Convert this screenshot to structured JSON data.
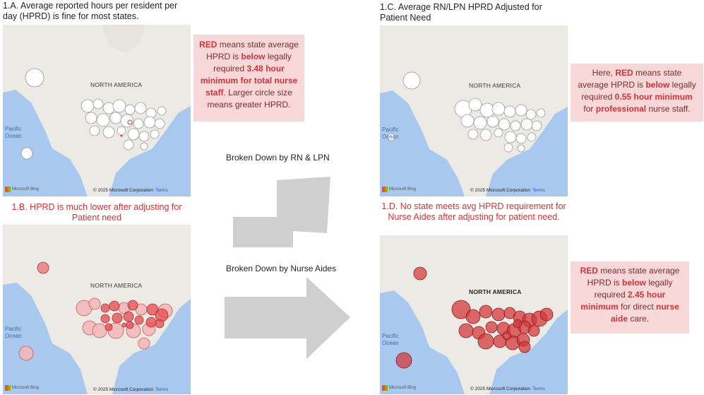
{
  "panels": {
    "a": {
      "title": "1.A. Average reported hours per resident per day (HPRD) is fine for most states.",
      "map_label": "NORTH AMERICA",
      "ocean_label_1": "Pacific",
      "ocean_label_2": "Ocean",
      "bing": "Microsoft Bing",
      "copyright": "© 2025 Microsoft Corporation",
      "terms": "Terms",
      "note": {
        "p1": "RED",
        "p2": " means state average HPRD is ",
        "p3": "below",
        "p4": " legally required ",
        "p5": "3.48 hour minimum for total nurse staff",
        "p6": ". Larger circle size means greater HPRD."
      }
    },
    "b": {
      "title": "1.B. HPRD is much lower after adjusting for Patient need",
      "map_label": "NORTH AMERICA",
      "ocean_label_1": "Pacific",
      "ocean_label_2": "Ocean",
      "bing": "Microsoft Bing",
      "copyright": "© 2025 Microsoft Corporation",
      "terms": "Terms"
    },
    "c": {
      "title": "1.C. Average RN/LPN HPRD Adjusted for Patient Need",
      "map_label": "NORTH AMERICA",
      "ocean_label_1": "Pacific",
      "ocean_label_2": "Ocean",
      "bing": "Microsoft Bing",
      "copyright": "© 2025 Microsoft Corporation",
      "terms": "Terms",
      "note": {
        "p1": "Here, ",
        "p2": "RED",
        "p3": " means state average HPRD is ",
        "p4": "below",
        "p5": " legally required ",
        "p6": "0.55 hour minimum",
        "p7": " for ",
        "p8": "professional",
        "p9": " nurse staff."
      }
    },
    "d": {
      "title": "1.D. No state meets avg HPRD requirement for Nurse Aides after adjusting for patient need.",
      "map_label": "NORTH AMERICA",
      "ocean_label_1": "Pacific",
      "ocean_label_2": "Ocean",
      "bing": "Microsoft Bing",
      "copyright": "© 2025 Microsoft Corporation",
      "terms": "Terms",
      "note": {
        "p1": "RED",
        "p2": " means state average HPRD is ",
        "p3": "below",
        "p4": " legally required ",
        "p5": "2.45 hour minimum",
        "p6": " for direct ",
        "p7": "nurse aide",
        "p8": " care."
      }
    }
  },
  "arrows": {
    "rn_lpn": "Broken Down by RN & LPN",
    "aides": "Broken Down by Nurse Aides"
  },
  "colors": {
    "red": "#d13438",
    "note_bg": "#f8d7d9",
    "water": "#a8c8ef",
    "land": "#eceae4",
    "arrow": "#cfcfcf"
  },
  "icons": {
    "bing_logo": "microsoft-logo-icon",
    "arrow_up": "up-right-arrow-icon",
    "arrow_right": "right-arrow-icon"
  }
}
